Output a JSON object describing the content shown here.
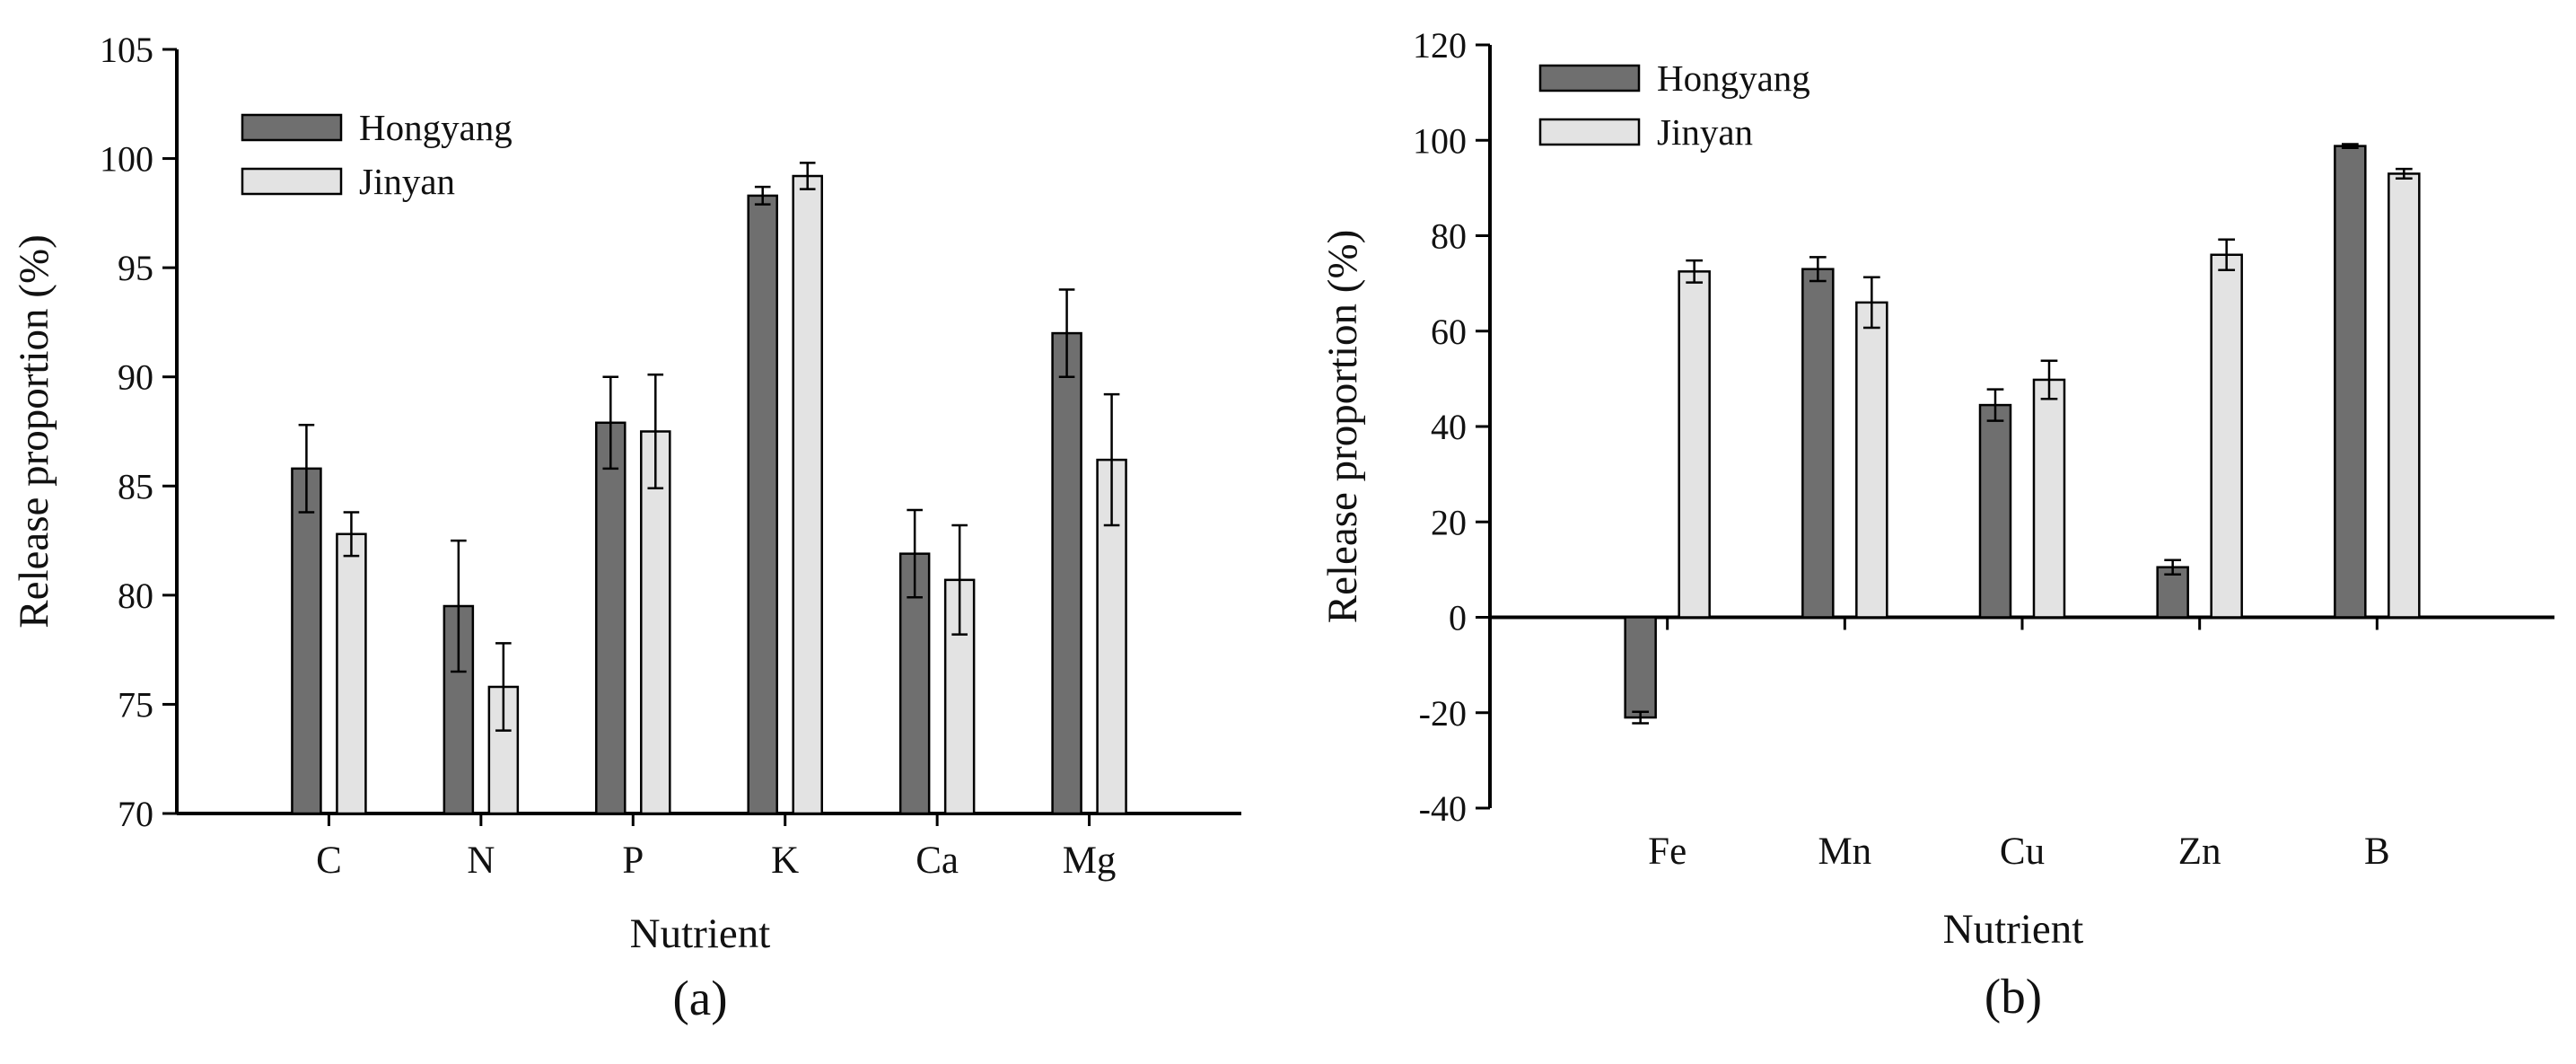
{
  "chart_data": [
    {
      "panel": "(a)",
      "type": "bar",
      "ylabel": "Release proportion (%)",
      "xlabel": "Nutrient",
      "ylim": [
        70,
        105
      ],
      "yticks": [
        70,
        75,
        80,
        85,
        90,
        95,
        100,
        105
      ],
      "categories": [
        "C",
        "N",
        "P",
        "K",
        "Ca",
        "Mg"
      ],
      "legend": "top-left",
      "series": [
        {
          "name": "Hongyang",
          "color": "#6f6f6f",
          "values": [
            85.8,
            79.5,
            87.9,
            98.3,
            81.9,
            92.0
          ],
          "errors": [
            2.0,
            3.0,
            2.1,
            0.4,
            2.0,
            2.0
          ]
        },
        {
          "name": "Jinyan",
          "color": "#e3e3e3",
          "values": [
            82.8,
            75.8,
            87.5,
            99.2,
            80.7,
            86.2
          ],
          "errors": [
            1.0,
            2.0,
            2.6,
            0.6,
            2.5,
            3.0
          ]
        }
      ]
    },
    {
      "panel": "(b)",
      "type": "bar",
      "ylabel": "Release proportion (%)",
      "xlabel": "Nutrient",
      "ylim": [
        -40,
        120
      ],
      "yticks": [
        -40,
        -20,
        0,
        20,
        40,
        60,
        80,
        100,
        120
      ],
      "categories": [
        "Fe",
        "Mn",
        "Cu",
        "Zn",
        "B"
      ],
      "legend": "top-left",
      "series": [
        {
          "name": "Hongyang",
          "color": "#6f6f6f",
          "values": [
            -21.0,
            73.0,
            44.5,
            10.5,
            98.8
          ],
          "errors": [
            1.2,
            2.5,
            3.3,
            1.5,
            0.4
          ]
        },
        {
          "name": "Jinyan",
          "color": "#e3e3e3",
          "values": [
            72.5,
            66.0,
            49.8,
            76.0,
            93.0
          ],
          "errors": [
            2.3,
            5.3,
            4.0,
            3.2,
            1.0
          ]
        }
      ]
    }
  ]
}
